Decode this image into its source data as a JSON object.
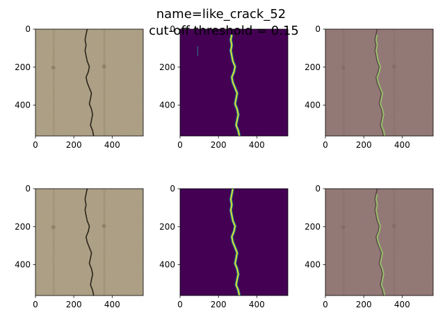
{
  "figure": {
    "title_line1": "name=like_crack_52",
    "title_line2": "cut-off threshold = 0.15"
  },
  "chart_data": [
    {
      "type": "heatmap",
      "panel": "original-image-top",
      "image_kind": "concrete-photo",
      "x_ticks": [
        "0",
        "200",
        "400"
      ],
      "y_ticks": [
        "0",
        "200",
        "400"
      ],
      "xlim": [
        0,
        562
      ],
      "ylim": [
        562,
        0
      ]
    },
    {
      "type": "heatmap",
      "panel": "prediction-map-top",
      "image_kind": "viridis-heatmap",
      "x_ticks": [
        "0",
        "200",
        "400"
      ],
      "y_ticks": [
        "0",
        "200",
        "400"
      ],
      "xlim": [
        0,
        562
      ],
      "ylim": [
        562,
        0
      ]
    },
    {
      "type": "heatmap",
      "panel": "overlay-top",
      "image_kind": "photo-with-overlay",
      "x_ticks": [
        "0",
        "200",
        "400"
      ],
      "y_ticks": [
        "0",
        "200",
        "400"
      ],
      "xlim": [
        0,
        562
      ],
      "ylim": [
        562,
        0
      ]
    },
    {
      "type": "heatmap",
      "panel": "original-image-bottom",
      "image_kind": "concrete-photo",
      "x_ticks": [
        "0",
        "200",
        "400"
      ],
      "y_ticks": [
        "0",
        "200",
        "400"
      ],
      "xlim": [
        0,
        562
      ],
      "ylim": [
        562,
        0
      ]
    },
    {
      "type": "heatmap",
      "panel": "ground-truth-bottom",
      "image_kind": "viridis-heatmap",
      "x_ticks": [
        "0",
        "200",
        "400"
      ],
      "y_ticks": [
        "0",
        "200",
        "400"
      ],
      "xlim": [
        0,
        562
      ],
      "ylim": [
        562,
        0
      ]
    },
    {
      "type": "heatmap",
      "panel": "overlay-bottom",
      "image_kind": "photo-with-overlay",
      "x_ticks": [
        "0",
        "200",
        "400"
      ],
      "y_ticks": [
        "0",
        "200",
        "400"
      ],
      "xlim": [
        0,
        562
      ],
      "ylim": [
        562,
        0
      ]
    }
  ],
  "colors": {
    "concrete": "#b3a68b",
    "viridis_bg": "#440154",
    "viridis_mid": "#21918c",
    "viridis_high": "#fde725",
    "overlay_tint": "#7d5a6a",
    "crack_dark": "#2a2418"
  }
}
